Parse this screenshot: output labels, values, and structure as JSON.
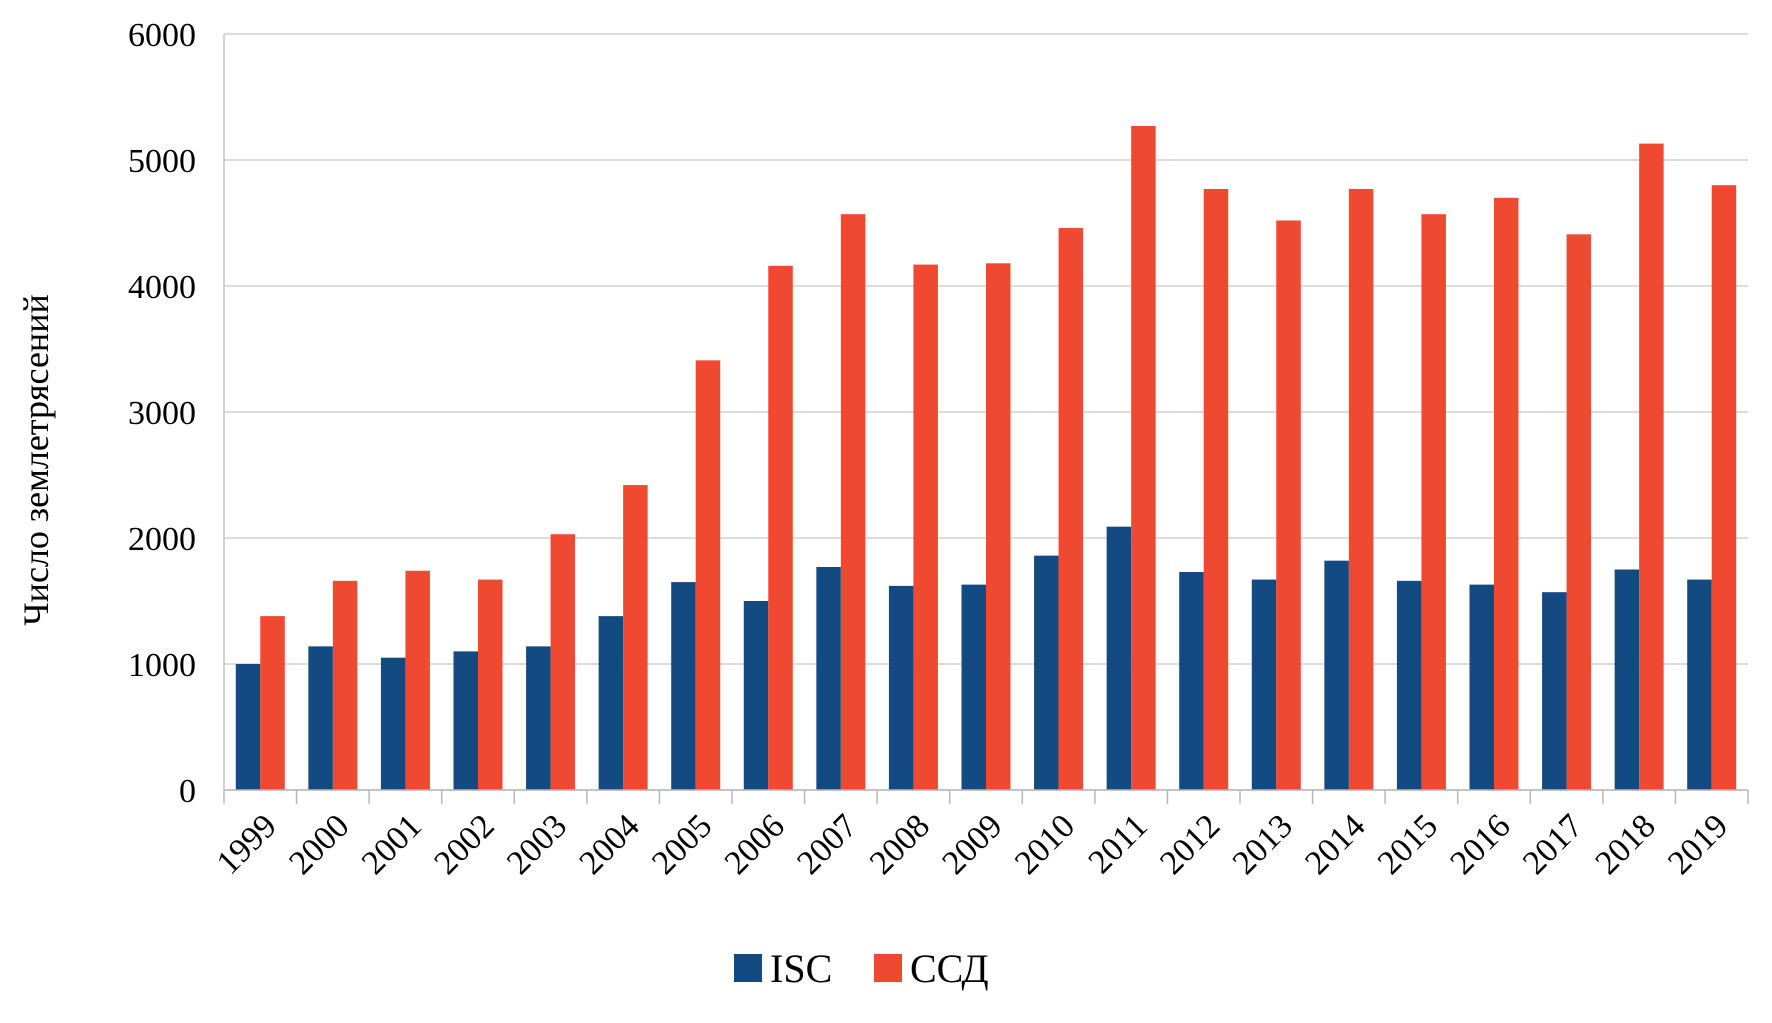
{
  "chart_data": {
    "type": "bar",
    "title": "",
    "xlabel": "",
    "ylabel": "Число землетрясений",
    "ylim": [
      0,
      6000
    ],
    "yticks": [
      0,
      1000,
      2000,
      3000,
      4000,
      5000,
      6000
    ],
    "grid": true,
    "legend_position": "bottom",
    "categories": [
      "1999",
      "2000",
      "2001",
      "2002",
      "2003",
      "2004",
      "2005",
      "2006",
      "2007",
      "2008",
      "2009",
      "2010",
      "2011",
      "2012",
      "2013",
      "2014",
      "2015",
      "2016",
      "2017",
      "2018",
      "2019"
    ],
    "series": [
      {
        "name": "ISC",
        "color": "#144a82",
        "values": [
          1000,
          1140,
          1050,
          1100,
          1140,
          1380,
          1650,
          1500,
          1770,
          1620,
          1630,
          1860,
          2090,
          1730,
          1670,
          1820,
          1660,
          1630,
          1570,
          1750,
          1670
        ]
      },
      {
        "name": "ССД",
        "color": "#f04932",
        "values": [
          1380,
          1660,
          1740,
          1670,
          2030,
          2420,
          3410,
          4160,
          4570,
          4170,
          4180,
          4460,
          5270,
          4770,
          4520,
          4770,
          4570,
          4700,
          4410,
          5130,
          4800
        ]
      }
    ]
  }
}
